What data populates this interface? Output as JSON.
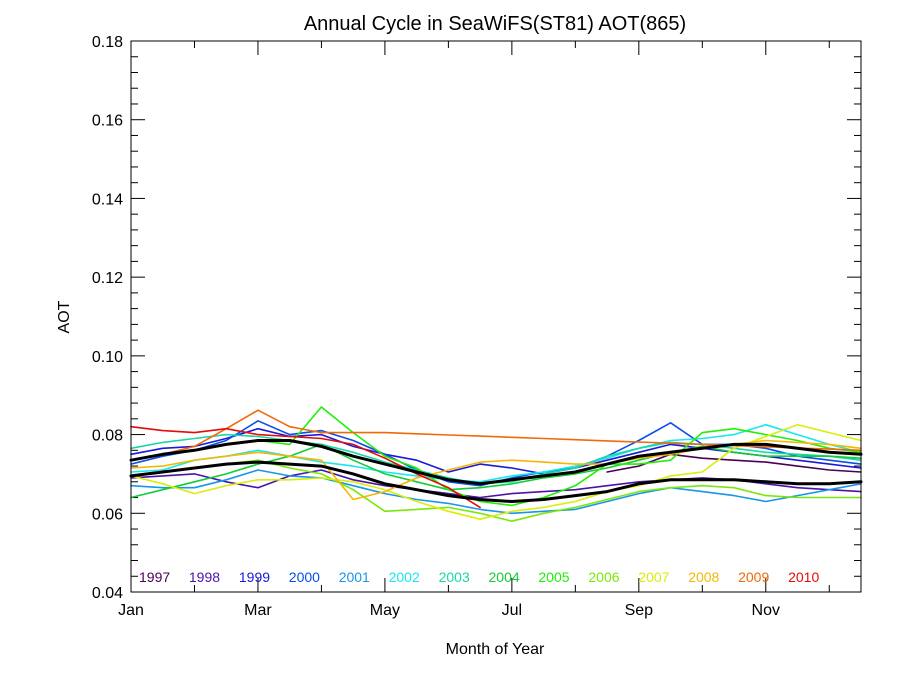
{
  "chart_data": {
    "type": "line",
    "title": "Annual Cycle in SeaWiFS(ST81) AOT(865)",
    "xlabel": "Month of Year",
    "ylabel": "AOT",
    "xlim": [
      1,
      12.5
    ],
    "ylim": [
      0.04,
      0.18
    ],
    "x_ticks": [
      {
        "value": 1,
        "label": "Jan"
      },
      {
        "value": 3,
        "label": "Mar"
      },
      {
        "value": 5,
        "label": "May"
      },
      {
        "value": 7,
        "label": "Jul"
      },
      {
        "value": 9,
        "label": "Sep"
      },
      {
        "value": 11,
        "label": "Nov"
      }
    ],
    "y_ticks": [
      {
        "value": 0.04,
        "label": "0.04"
      },
      {
        "value": 0.06,
        "label": "0.06"
      },
      {
        "value": 0.08,
        "label": "0.08"
      },
      {
        "value": 0.1,
        "label": "0.10"
      },
      {
        "value": 0.12,
        "label": "0.12"
      },
      {
        "value": 0.14,
        "label": "0.14"
      },
      {
        "value": 0.16,
        "label": "0.16"
      },
      {
        "value": 0.18,
        "label": "0.18"
      }
    ],
    "legend_position": "bottom-inside",
    "x": [
      1,
      1.5,
      2,
      2.5,
      3,
      3.5,
      4,
      4.5,
      5,
      5.5,
      6,
      6.5,
      7,
      7.5,
      8,
      8.5,
      9,
      9.5,
      10,
      10.5,
      11,
      11.5,
      12,
      12.5
    ],
    "series": [
      {
        "name": "1997",
        "color": "#4a0055",
        "values": [
          null,
          null,
          null,
          null,
          null,
          null,
          null,
          null,
          null,
          null,
          null,
          null,
          null,
          null,
          null,
          0.0705,
          0.072,
          0.075,
          0.074,
          0.0735,
          0.073,
          0.072,
          0.071,
          0.0705
        ]
      },
      {
        "name": "1998",
        "color": "#4b14a8",
        "values": [
          0.069,
          0.0695,
          0.07,
          0.068,
          0.0665,
          0.0695,
          0.071,
          0.0685,
          0.067,
          0.066,
          0.065,
          0.064,
          0.065,
          0.0655,
          0.066,
          0.067,
          0.068,
          0.0685,
          0.069,
          0.0685,
          0.0675,
          0.0665,
          0.066,
          0.0655
        ]
      },
      {
        "name": "1999",
        "color": "#1a1ad9",
        "values": [
          0.075,
          0.0765,
          0.077,
          0.079,
          0.0815,
          0.0795,
          0.08,
          0.077,
          0.075,
          0.0735,
          0.0705,
          0.0725,
          0.0715,
          0.07,
          0.0715,
          0.0735,
          0.0755,
          0.0775,
          0.0765,
          0.0755,
          0.0745,
          0.0735,
          0.0725,
          0.0715
        ]
      },
      {
        "name": "2000",
        "color": "#0a4fe6",
        "values": [
          0.0725,
          0.0745,
          0.076,
          0.0785,
          0.0835,
          0.08,
          0.081,
          0.0785,
          0.075,
          0.071,
          0.068,
          0.067,
          0.069,
          0.0705,
          0.0715,
          0.0745,
          0.0785,
          0.083,
          0.0775,
          0.0775,
          0.0765,
          0.0745,
          0.0735,
          0.0725
        ]
      },
      {
        "name": "2001",
        "color": "#1a96e8",
        "values": [
          0.067,
          0.0665,
          0.0665,
          0.0685,
          0.071,
          0.0695,
          0.069,
          0.067,
          0.065,
          0.0635,
          0.0625,
          0.061,
          0.06,
          0.0605,
          0.061,
          0.063,
          0.065,
          0.0665,
          0.0655,
          0.0645,
          0.063,
          0.0645,
          0.066,
          0.0675
        ]
      },
      {
        "name": "2002",
        "color": "#1ae6ee",
        "values": [
          0.0705,
          0.071,
          0.0735,
          0.0745,
          0.076,
          0.0745,
          0.073,
          0.072,
          0.0705,
          0.0695,
          0.0685,
          0.068,
          0.0695,
          0.0705,
          0.072,
          0.074,
          0.0765,
          0.0785,
          0.079,
          0.08,
          0.0825,
          0.08,
          0.0775,
          0.0755
        ]
      },
      {
        "name": "2003",
        "color": "#1ad7a6",
        "values": [
          0.0765,
          0.078,
          0.079,
          0.08,
          0.0795,
          0.0785,
          0.0775,
          0.0755,
          0.073,
          0.071,
          0.069,
          0.0675,
          0.068,
          0.07,
          0.0715,
          0.0745,
          0.0765,
          0.078,
          0.0775,
          0.0765,
          0.0755,
          0.075,
          0.0745,
          0.0735
        ]
      },
      {
        "name": "2004",
        "color": "#14cc39",
        "values": [
          0.064,
          0.066,
          0.068,
          0.07,
          0.0725,
          0.0745,
          0.0775,
          0.0735,
          0.07,
          0.068,
          0.066,
          0.0665,
          0.0675,
          0.069,
          0.07,
          0.0715,
          0.0735,
          0.0755,
          0.077,
          0.0755,
          0.0745,
          0.0745,
          0.0745,
          0.074
        ]
      },
      {
        "name": "2005",
        "color": "#22ee0a",
        "values": [
          0.0735,
          0.075,
          0.076,
          0.0775,
          0.0785,
          0.0775,
          0.087,
          0.0805,
          0.0745,
          0.0715,
          0.066,
          0.063,
          0.062,
          0.064,
          0.067,
          0.0725,
          0.0725,
          0.0735,
          0.0805,
          0.0815,
          0.08,
          0.0785,
          0.0765,
          0.0755
        ]
      },
      {
        "name": "2006",
        "color": "#7ae80a",
        "values": [
          0.0695,
          0.0705,
          0.0715,
          0.0725,
          0.0735,
          0.0715,
          0.07,
          0.066,
          0.0605,
          0.061,
          0.0615,
          0.06,
          0.058,
          0.06,
          0.0615,
          0.0635,
          0.0655,
          0.0665,
          0.067,
          0.0665,
          0.0645,
          0.064,
          0.064,
          0.064
        ]
      },
      {
        "name": "2007",
        "color": "#d9ee0a",
        "values": [
          0.0695,
          0.0675,
          0.065,
          0.067,
          0.0685,
          0.0685,
          0.069,
          0.068,
          0.066,
          0.063,
          0.0605,
          0.0585,
          0.0605,
          0.0615,
          0.063,
          0.0655,
          0.067,
          0.0695,
          0.0705,
          0.0765,
          0.0795,
          0.0825,
          0.0805,
          0.0785
        ]
      },
      {
        "name": "2008",
        "color": "#f5b800",
        "values": [
          0.0715,
          0.072,
          0.0735,
          0.0745,
          0.0755,
          0.0745,
          0.0735,
          0.0635,
          0.0655,
          0.069,
          0.071,
          0.073,
          0.0735,
          0.073,
          0.0725,
          0.0725,
          0.074,
          0.075,
          0.0765,
          0.0775,
          0.0785,
          0.078,
          0.0775,
          0.0765
        ]
      },
      {
        "name": "2009",
        "color": "#f06a0a",
        "values": [
          0.0735,
          0.075,
          0.077,
          0.0815,
          0.0862,
          0.082,
          0.0805,
          0.0805,
          0.0805,
          0.0802,
          0.0799,
          0.0796,
          0.0793,
          0.079,
          0.0787,
          0.0784,
          0.0781,
          0.0778,
          0.0775,
          0.0772,
          0.0769,
          0.0766,
          0.0763,
          0.076
        ]
      },
      {
        "name": "2010",
        "color": "#e60a0a",
        "values": [
          0.082,
          0.081,
          0.0805,
          0.0815,
          0.08,
          0.0795,
          0.079,
          0.0775,
          0.074,
          0.07,
          0.0665,
          0.0615,
          null,
          null,
          null,
          null,
          null,
          null,
          null,
          null,
          null,
          null,
          null,
          null
        ]
      },
      {
        "name": "",
        "color": "#000000",
        "width": 3,
        "values": [
          0.0735,
          0.075,
          0.076,
          0.0775,
          0.0785,
          0.0785,
          0.077,
          0.0745,
          0.0725,
          0.0705,
          0.0685,
          0.0675,
          0.0685,
          0.0695,
          0.0705,
          0.0725,
          0.0745,
          0.0755,
          0.0765,
          0.0775,
          0.0775,
          0.0765,
          0.0755,
          0.075
        ]
      },
      {
        "name": "",
        "color": "#000000",
        "width": 3,
        "values": [
          0.0695,
          0.0705,
          0.0715,
          0.0725,
          0.073,
          0.0725,
          0.072,
          0.07,
          0.0675,
          0.066,
          0.0645,
          0.0635,
          0.063,
          0.0635,
          0.0645,
          0.0655,
          0.0675,
          0.0685,
          0.0685,
          0.0685,
          0.068,
          0.0675,
          0.0675,
          0.068
        ]
      }
    ]
  }
}
